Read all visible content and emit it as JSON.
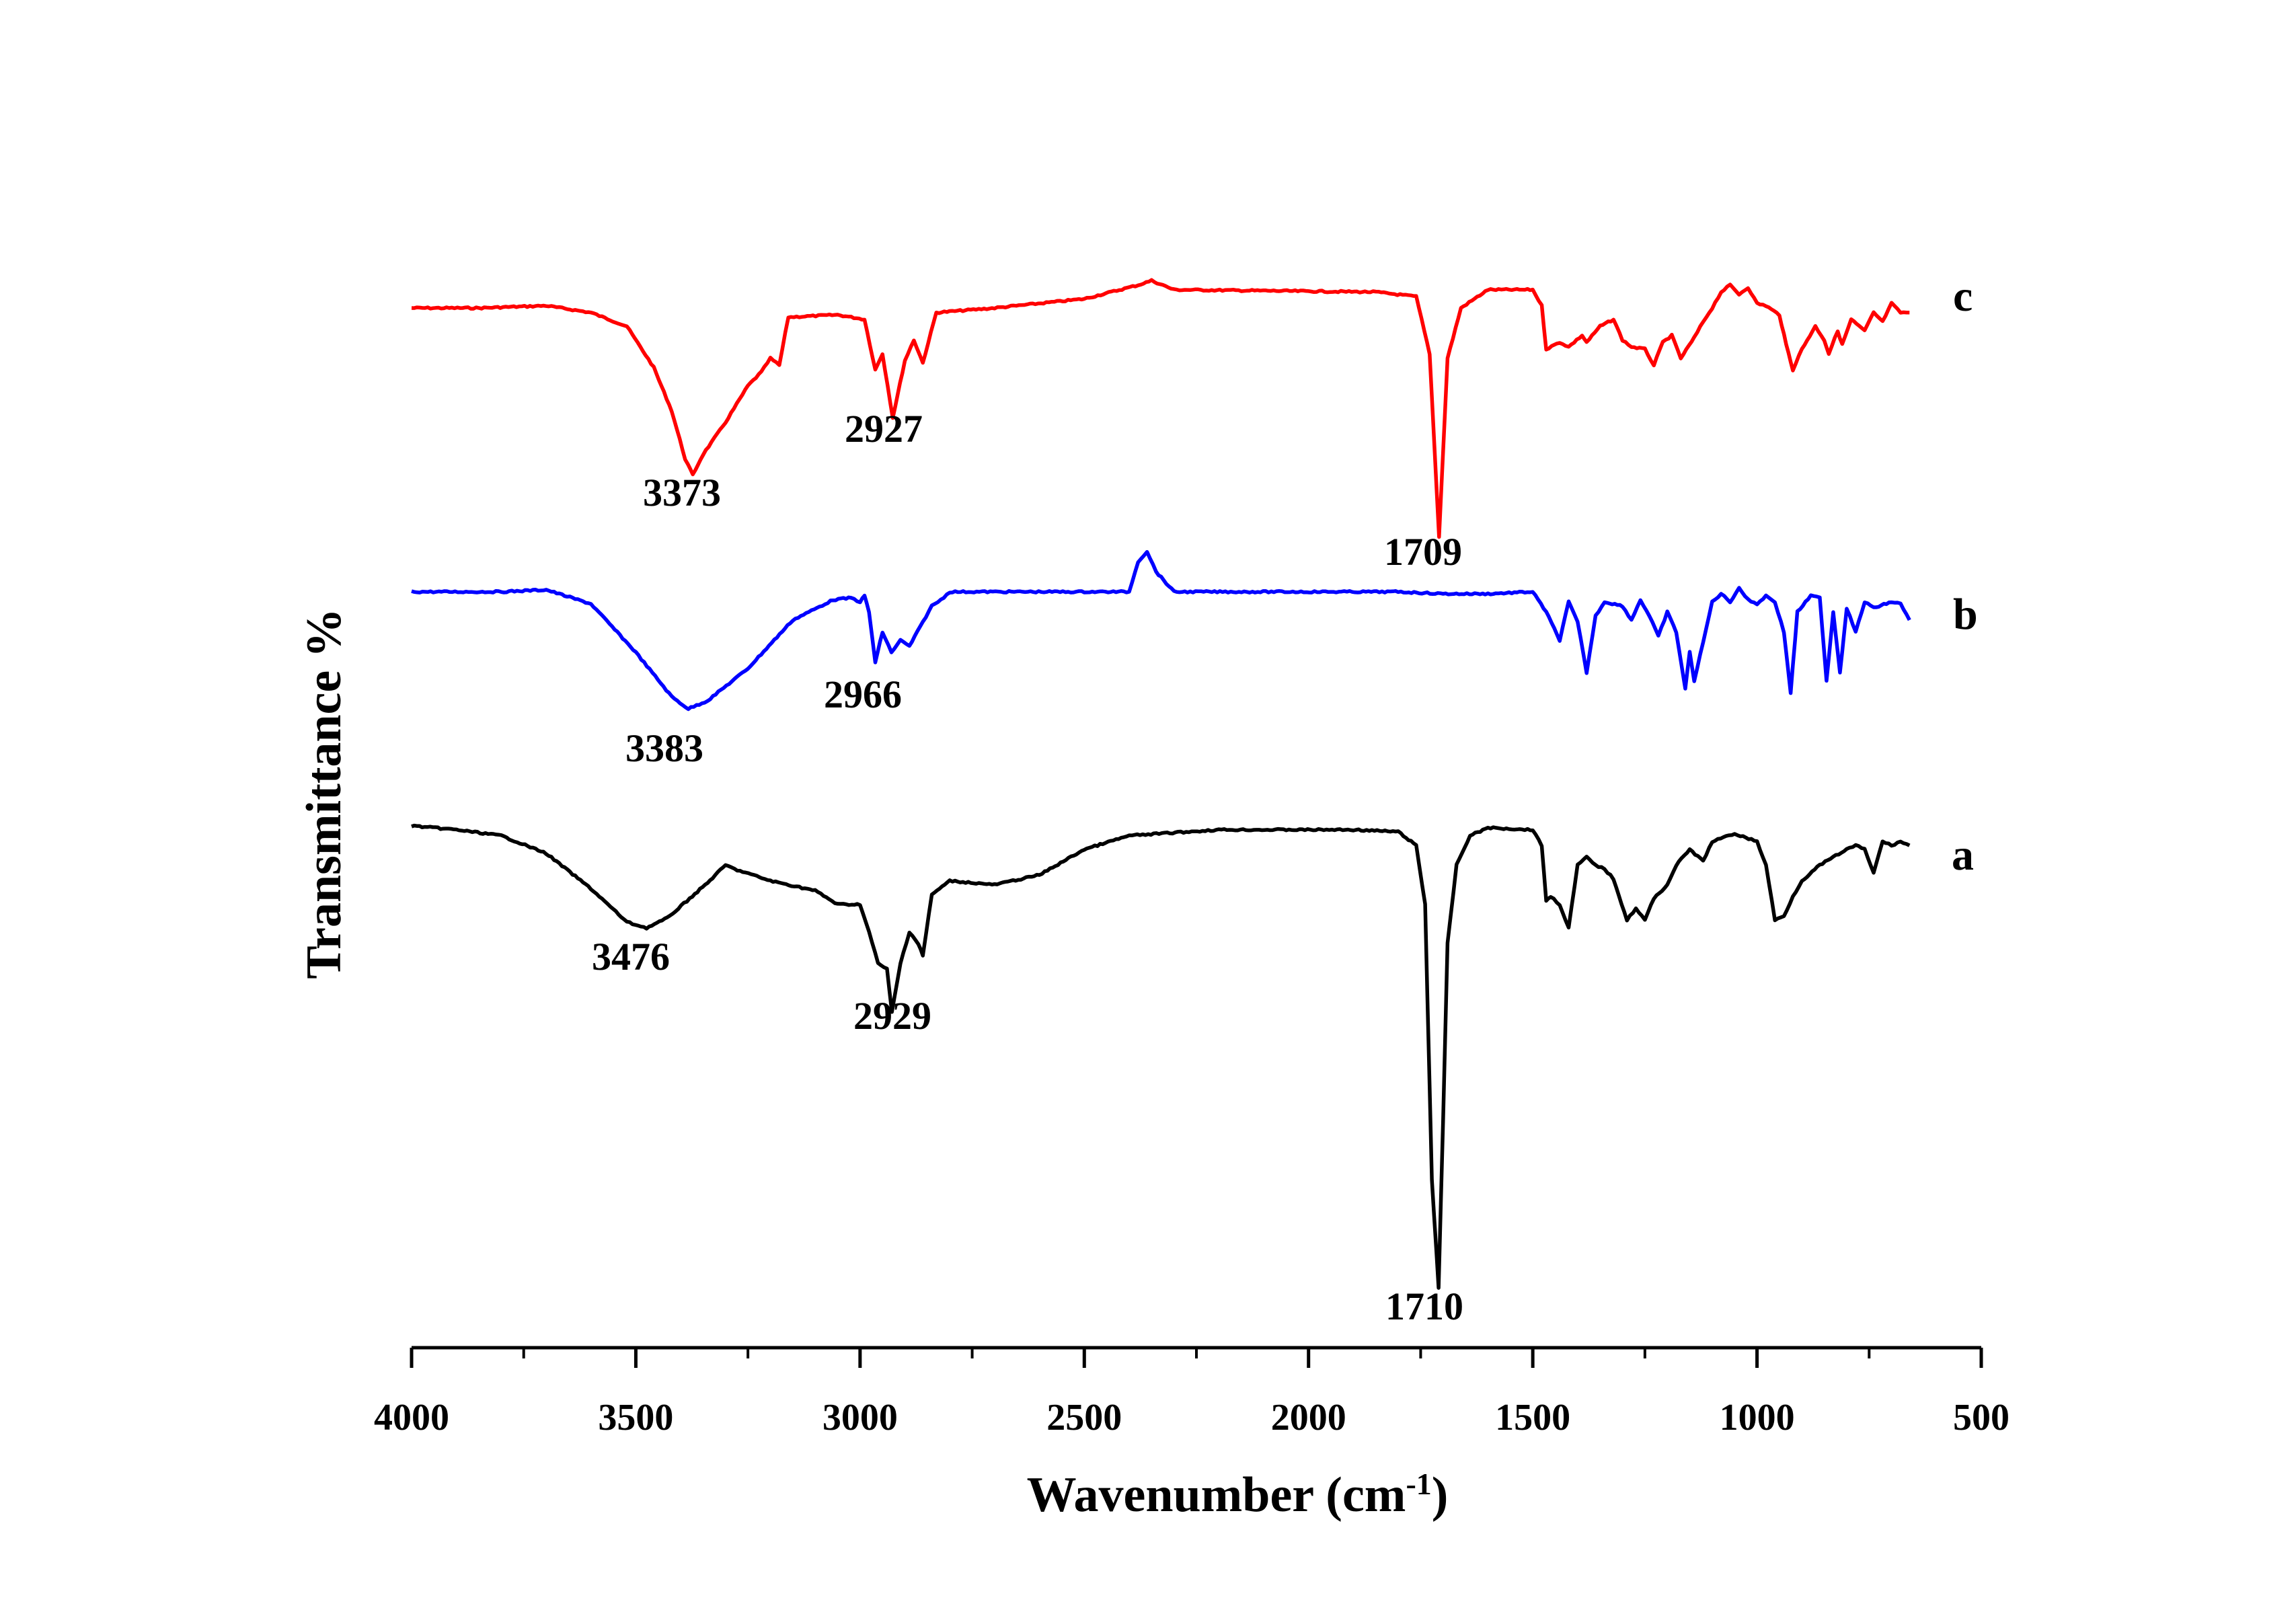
{
  "chart_data": {
    "type": "line",
    "xlabel": "Wavenumber (cm",
    "xlabel_sup": "-1",
    "xlabel_close": ")",
    "ylabel": "Transmittance %",
    "xlim": [
      4000,
      500
    ],
    "x_reversed": true,
    "x_ticks": [
      "4000",
      "3500",
      "3000",
      "2500",
      "2000",
      "1500",
      "1000",
      "500"
    ],
    "grid": false,
    "series": [
      {
        "name": "c",
        "color": "#ff0000",
        "points": [
          [
            4000,
            0.0
          ],
          [
            3850,
            0.0
          ],
          [
            3700,
            -0.01
          ],
          [
            3600,
            0.02
          ],
          [
            3520,
            0.08
          ],
          [
            3460,
            0.26
          ],
          [
            3420,
            0.45
          ],
          [
            3390,
            0.66
          ],
          [
            3373,
            0.73
          ],
          [
            3350,
            0.64
          ],
          [
            3300,
            0.5
          ],
          [
            3250,
            0.34
          ],
          [
            3220,
            0.28
          ],
          [
            3200,
            0.22
          ],
          [
            3180,
            0.25
          ],
          [
            3160,
            0.04
          ],
          [
            3050,
            0.03
          ],
          [
            2990,
            0.05
          ],
          [
            2966,
            0.27
          ],
          [
            2950,
            0.2
          ],
          [
            2927,
            0.48
          ],
          [
            2900,
            0.23
          ],
          [
            2880,
            0.14
          ],
          [
            2860,
            0.24
          ],
          [
            2830,
            0.02
          ],
          [
            2700,
            0.0
          ],
          [
            2500,
            -0.04
          ],
          [
            2380,
            -0.1
          ],
          [
            2350,
            -0.12
          ],
          [
            2300,
            -0.08
          ],
          [
            1850,
            -0.07
          ],
          [
            1760,
            -0.05
          ],
          [
            1730,
            0.2
          ],
          [
            1709,
            1.0
          ],
          [
            1690,
            0.22
          ],
          [
            1660,
            0.0
          ],
          [
            1600,
            -0.08
          ],
          [
            1500,
            -0.08
          ],
          [
            1480,
            -0.01
          ],
          [
            1470,
            0.18
          ],
          [
            1440,
            0.15
          ],
          [
            1420,
            0.17
          ],
          [
            1390,
            0.12
          ],
          [
            1380,
            0.15
          ],
          [
            1350,
            0.08
          ],
          [
            1320,
            0.05
          ],
          [
            1300,
            0.14
          ],
          [
            1280,
            0.17
          ],
          [
            1250,
            0.18
          ],
          [
            1230,
            0.25
          ],
          [
            1210,
            0.15
          ],
          [
            1190,
            0.12
          ],
          [
            1170,
            0.22
          ],
          [
            1140,
            0.13
          ],
          [
            1120,
            0.06
          ],
          [
            1100,
            0.0
          ],
          [
            1080,
            -0.07
          ],
          [
            1060,
            -0.1
          ],
          [
            1040,
            -0.06
          ],
          [
            1020,
            -0.09
          ],
          [
            1000,
            -0.02
          ],
          [
            980,
            -0.01
          ],
          [
            950,
            0.03
          ],
          [
            935,
            0.16
          ],
          [
            920,
            0.27
          ],
          [
            900,
            0.18
          ],
          [
            870,
            0.08
          ],
          [
            850,
            0.14
          ],
          [
            840,
            0.2
          ],
          [
            820,
            0.1
          ],
          [
            810,
            0.16
          ],
          [
            790,
            0.05
          ],
          [
            760,
            0.1
          ],
          [
            740,
            0.02
          ],
          [
            720,
            0.06
          ],
          [
            700,
            -0.02
          ],
          [
            680,
            0.02
          ],
          [
            660,
            0.02
          ]
        ]
      },
      {
        "name": "b",
        "color": "#0000ff",
        "points": [
          [
            4000,
            0.0
          ],
          [
            3800,
            0.0
          ],
          [
            3700,
            -0.01
          ],
          [
            3600,
            0.06
          ],
          [
            3500,
            0.3
          ],
          [
            3420,
            0.52
          ],
          [
            3383,
            0.58
          ],
          [
            3340,
            0.54
          ],
          [
            3250,
            0.38
          ],
          [
            3150,
            0.14
          ],
          [
            3060,
            0.04
          ],
          [
            3020,
            0.03
          ],
          [
            3000,
            0.05
          ],
          [
            2990,
            0.02
          ],
          [
            2980,
            0.1
          ],
          [
            2966,
            0.35
          ],
          [
            2950,
            0.2
          ],
          [
            2930,
            0.3
          ],
          [
            2910,
            0.24
          ],
          [
            2890,
            0.27
          ],
          [
            2860,
            0.15
          ],
          [
            2840,
            0.07
          ],
          [
            2820,
            0.04
          ],
          [
            2800,
            0.0
          ],
          [
            2500,
            0.0
          ],
          [
            2400,
            0.0
          ],
          [
            2380,
            -0.15
          ],
          [
            2360,
            -0.2
          ],
          [
            2340,
            -0.1
          ],
          [
            2300,
            0.0
          ],
          [
            1800,
            0.0
          ],
          [
            1700,
            0.01
          ],
          [
            1600,
            0.01
          ],
          [
            1500,
            0.0
          ],
          [
            1470,
            0.1
          ],
          [
            1440,
            0.24
          ],
          [
            1420,
            0.05
          ],
          [
            1400,
            0.15
          ],
          [
            1380,
            0.4
          ],
          [
            1360,
            0.12
          ],
          [
            1340,
            0.05
          ],
          [
            1300,
            0.07
          ],
          [
            1280,
            0.14
          ],
          [
            1260,
            0.04
          ],
          [
            1240,
            0.12
          ],
          [
            1220,
            0.22
          ],
          [
            1200,
            0.1
          ],
          [
            1180,
            0.2
          ],
          [
            1160,
            0.48
          ],
          [
            1150,
            0.3
          ],
          [
            1140,
            0.44
          ],
          [
            1120,
            0.25
          ],
          [
            1100,
            0.05
          ],
          [
            1080,
            0.01
          ],
          [
            1060,
            0.05
          ],
          [
            1040,
            -0.02
          ],
          [
            1020,
            0.04
          ],
          [
            1000,
            0.06
          ],
          [
            980,
            0.02
          ],
          [
            960,
            0.05
          ],
          [
            940,
            0.2
          ],
          [
            925,
            0.5
          ],
          [
            910,
            0.1
          ],
          [
            880,
            0.02
          ],
          [
            860,
            0.03
          ],
          [
            845,
            0.44
          ],
          [
            830,
            0.1
          ],
          [
            815,
            0.4
          ],
          [
            800,
            0.08
          ],
          [
            780,
            0.2
          ],
          [
            760,
            0.05
          ],
          [
            740,
            0.08
          ],
          [
            700,
            0.05
          ],
          [
            680,
            0.06
          ],
          [
            660,
            0.14
          ]
        ]
      },
      {
        "name": "a",
        "color": "#000000",
        "points": [
          [
            4000,
            0.0
          ],
          [
            3900,
            0.02
          ],
          [
            3800,
            0.05
          ],
          [
            3700,
            0.14
          ],
          [
            3600,
            0.32
          ],
          [
            3520,
            0.49
          ],
          [
            3476,
            0.52
          ],
          [
            3430,
            0.47
          ],
          [
            3380,
            0.37
          ],
          [
            3340,
            0.29
          ],
          [
            3300,
            0.2
          ],
          [
            3280,
            0.22
          ],
          [
            3200,
            0.28
          ],
          [
            3100,
            0.33
          ],
          [
            3050,
            0.4
          ],
          [
            3000,
            0.4
          ],
          [
            2980,
            0.54
          ],
          [
            2960,
            0.7
          ],
          [
            2940,
            0.73
          ],
          [
            2929,
            0.95
          ],
          [
            2910,
            0.7
          ],
          [
            2890,
            0.54
          ],
          [
            2870,
            0.6
          ],
          [
            2860,
            0.66
          ],
          [
            2840,
            0.35
          ],
          [
            2800,
            0.28
          ],
          [
            2700,
            0.3
          ],
          [
            2600,
            0.25
          ],
          [
            2500,
            0.12
          ],
          [
            2400,
            0.05
          ],
          [
            2200,
            0.02
          ],
          [
            1900,
            0.02
          ],
          [
            1800,
            0.03
          ],
          [
            1760,
            0.1
          ],
          [
            1740,
            0.4
          ],
          [
            1725,
            1.8
          ],
          [
            1710,
            2.35
          ],
          [
            1700,
            1.5
          ],
          [
            1690,
            0.6
          ],
          [
            1670,
            0.2
          ],
          [
            1640,
            0.05
          ],
          [
            1600,
            0.01
          ],
          [
            1500,
            0.02
          ],
          [
            1480,
            0.1
          ],
          [
            1470,
            0.38
          ],
          [
            1460,
            0.36
          ],
          [
            1440,
            0.4
          ],
          [
            1420,
            0.52
          ],
          [
            1400,
            0.2
          ],
          [
            1380,
            0.16
          ],
          [
            1360,
            0.2
          ],
          [
            1340,
            0.22
          ],
          [
            1320,
            0.27
          ],
          [
            1290,
            0.48
          ],
          [
            1270,
            0.42
          ],
          [
            1250,
            0.48
          ],
          [
            1230,
            0.37
          ],
          [
            1200,
            0.3
          ],
          [
            1180,
            0.2
          ],
          [
            1150,
            0.12
          ],
          [
            1120,
            0.18
          ],
          [
            1100,
            0.08
          ],
          [
            1050,
            0.04
          ],
          [
            1000,
            0.08
          ],
          [
            980,
            0.2
          ],
          [
            960,
            0.48
          ],
          [
            940,
            0.46
          ],
          [
            920,
            0.36
          ],
          [
            900,
            0.28
          ],
          [
            860,
            0.2
          ],
          [
            830,
            0.16
          ],
          [
            800,
            0.12
          ],
          [
            780,
            0.1
          ],
          [
            760,
            0.12
          ],
          [
            740,
            0.24
          ],
          [
            720,
            0.08
          ],
          [
            700,
            0.1
          ],
          [
            680,
            0.08
          ],
          [
            660,
            0.1
          ]
        ]
      }
    ],
    "annotations": [
      {
        "series": "c",
        "text": "3373"
      },
      {
        "series": "c",
        "text": "2927"
      },
      {
        "series": "c",
        "text": "1709"
      },
      {
        "series": "b",
        "text": "3383"
      },
      {
        "series": "b",
        "text": "2966"
      },
      {
        "series": "a",
        "text": "3476"
      },
      {
        "series": "a",
        "text": "2929"
      },
      {
        "series": "a",
        "text": "1710"
      }
    ]
  }
}
